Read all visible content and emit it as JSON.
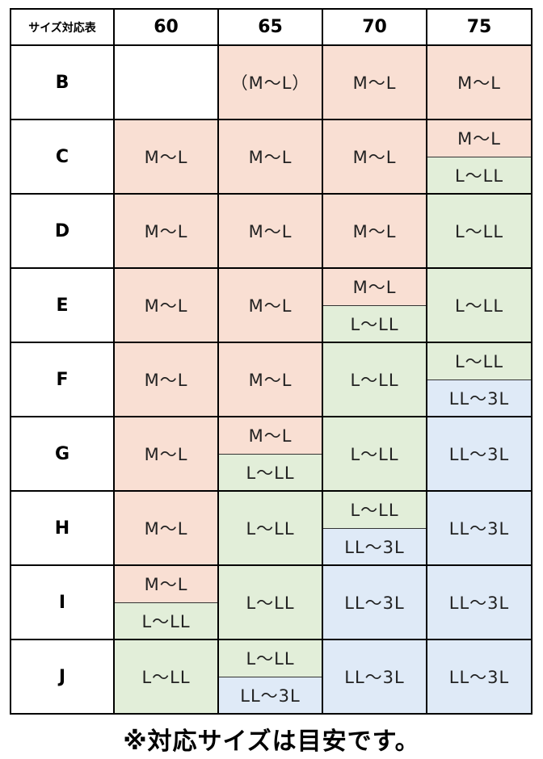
{
  "table": {
    "corner_label": "サイズ対応表",
    "columns": [
      "60",
      "65",
      "70",
      "75"
    ],
    "rows": [
      {
        "band": "B",
        "cells": [
          [],
          [
            "（M〜L）"
          ],
          [
            "M〜L"
          ],
          [
            "M〜L"
          ]
        ]
      },
      {
        "band": "C",
        "cells": [
          [
            "M〜L"
          ],
          [
            "M〜L"
          ],
          [
            "M〜L"
          ],
          [
            "M〜L",
            "L〜LL"
          ]
        ]
      },
      {
        "band": "D",
        "cells": [
          [
            "M〜L"
          ],
          [
            "M〜L"
          ],
          [
            "M〜L"
          ],
          [
            "L〜LL"
          ]
        ]
      },
      {
        "band": "E",
        "cells": [
          [
            "M〜L"
          ],
          [
            "M〜L"
          ],
          [
            "M〜L",
            "L〜LL"
          ],
          [
            "L〜LL"
          ]
        ]
      },
      {
        "band": "F",
        "cells": [
          [
            "M〜L"
          ],
          [
            "M〜L"
          ],
          [
            "L〜LL"
          ],
          [
            "L〜LL",
            "LL〜3L"
          ]
        ]
      },
      {
        "band": "G",
        "cells": [
          [
            "M〜L"
          ],
          [
            "M〜L",
            "L〜LL"
          ],
          [
            "L〜LL"
          ],
          [
            "LL〜3L"
          ]
        ]
      },
      {
        "band": "H",
        "cells": [
          [
            "M〜L"
          ],
          [
            "L〜LL"
          ],
          [
            "L〜LL",
            "LL〜3L"
          ],
          [
            "LL〜3L"
          ]
        ]
      },
      {
        "band": "I",
        "cells": [
          [
            "M〜L",
            "L〜LL"
          ],
          [
            "L〜LL"
          ],
          [
            "LL〜3L"
          ],
          [
            "LL〜3L"
          ]
        ]
      },
      {
        "band": "J",
        "cells": [
          [
            "L〜LL"
          ],
          [
            "L〜LL",
            "LL〜3L"
          ],
          [
            "LL〜3L"
          ],
          [
            "LL〜3L"
          ]
        ]
      }
    ]
  },
  "colors": {
    "M〜L": "#f9dfd3",
    "L〜LL": "#e2eed9",
    "LL〜3L": "#dfeaf7",
    "border": "#000000"
  },
  "note": "※対応サイズは目安です。"
}
